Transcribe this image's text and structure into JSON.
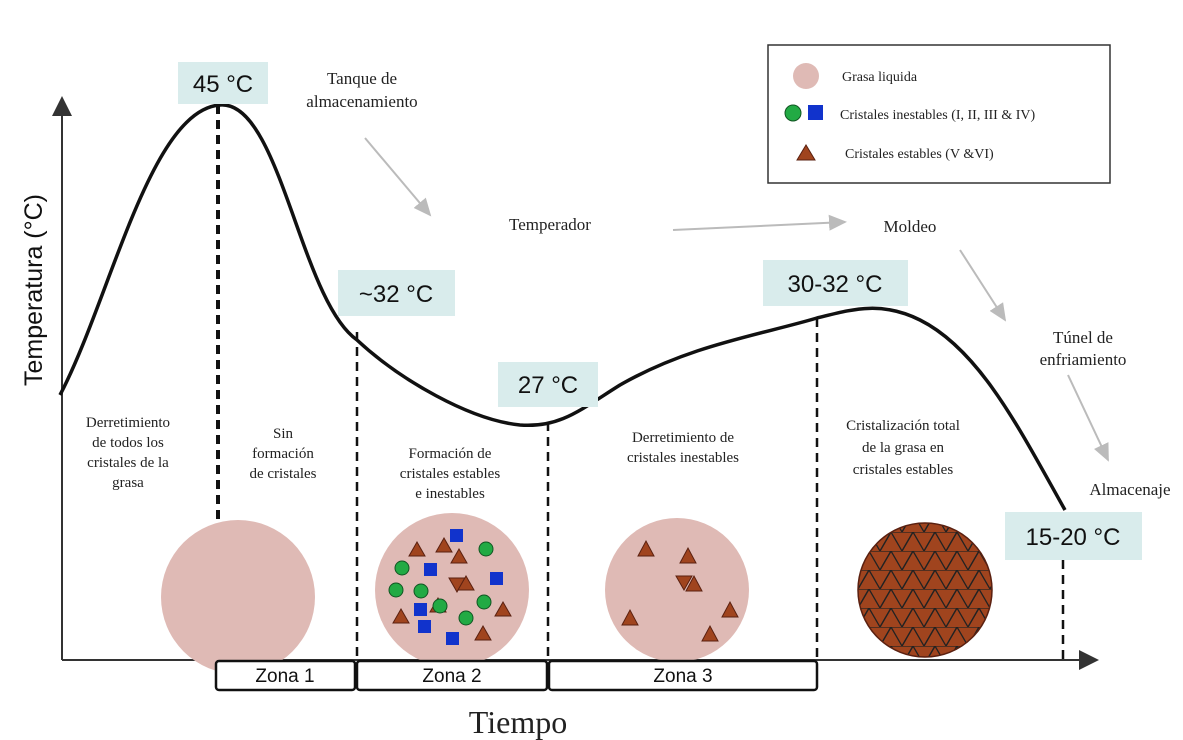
{
  "axes": {
    "y_label": "Temperatura (°C)",
    "x_label": "Tiempo"
  },
  "temperatures": [
    "45 °C",
    "~32 °C",
    "27 °C",
    "30-32 °C",
    "15-20 °C"
  ],
  "steps": [
    {
      "lines": [
        "Tanque de",
        "almacenamiento"
      ]
    },
    {
      "lines": [
        "Temperador"
      ]
    },
    {
      "lines": [
        "Moldeo"
      ]
    },
    {
      "lines": [
        "Túnel de",
        "enfriamiento"
      ]
    },
    {
      "lines": [
        "Almacenaje"
      ]
    }
  ],
  "legend": [
    "Grasa liquida",
    "Cristales inestables (I, II, III & IV)",
    "Cristales estables (V &VI)"
  ],
  "phases": [
    {
      "lines": [
        "Derretimiento",
        "de todos los",
        "cristales de la",
        "grasa"
      ]
    },
    {
      "lines": [
        "Sin",
        "formación",
        "de cristales"
      ]
    },
    {
      "lines": [
        "Formación de",
        "cristales estables",
        "e inestables"
      ]
    },
    {
      "lines": [
        "Derretimiento de",
        "cristales inestables"
      ]
    },
    {
      "lines": [
        "Cristalización total",
        "de la grasa en",
        "cristales estables"
      ]
    }
  ],
  "zones": [
    "Zona 1",
    "Zona 2",
    "Zona 3"
  ]
}
